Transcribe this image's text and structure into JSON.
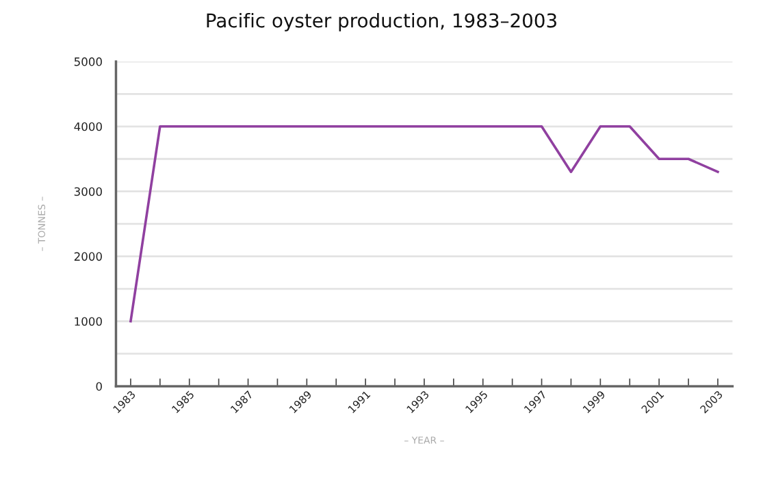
{
  "chart_data": {
    "type": "line",
    "title": "Pacific oyster production, 1983–2003",
    "xlabel": "– YEAR –",
    "ylabel": "– TONNES –",
    "x": [
      1983,
      1984,
      1985,
      1986,
      1987,
      1988,
      1989,
      1990,
      1991,
      1992,
      1993,
      1994,
      1995,
      1996,
      1997,
      1998,
      1999,
      2000,
      2001,
      2002,
      2003
    ],
    "series": [
      {
        "color": "#9040a0",
        "values": [
          1000,
          4000,
          4000,
          4000,
          4000,
          4000,
          4000,
          4000,
          4000,
          4000,
          4000,
          4000,
          4000,
          4000,
          4000,
          3300,
          4000,
          4000,
          3500,
          3500,
          3300
        ]
      }
    ],
    "xlim": [
      1982.5,
      2003.5
    ],
    "xticks": [
      1983,
      {
        "value": 1984,
        "label": null
      },
      1985,
      {
        "value": 1986,
        "label": null
      },
      1987,
      {
        "value": 1988,
        "label": null
      },
      1989,
      {
        "value": 1990,
        "label": null
      },
      1991,
      {
        "value": 1992,
        "label": null
      },
      1993,
      {
        "value": 1994,
        "label": null
      },
      1995,
      {
        "value": 1996,
        "label": null
      },
      1997,
      {
        "value": 1998,
        "label": null
      },
      1999,
      {
        "value": 2000,
        "label": null
      },
      2001,
      {
        "value": 2002,
        "label": null
      },
      2003
    ],
    "ylim": [
      0,
      5000
    ],
    "yticks": [
      0,
      {
        "value": 500,
        "label": null
      },
      1000,
      {
        "value": 1500,
        "label": null
      },
      2000,
      {
        "value": 2500,
        "label": null
      },
      3000,
      {
        "value": 3500,
        "label": null
      },
      4000,
      {
        "value": 4500,
        "label": null
      },
      5000
    ],
    "grid": "y",
    "marker": "none",
    "line_style": "solid"
  }
}
